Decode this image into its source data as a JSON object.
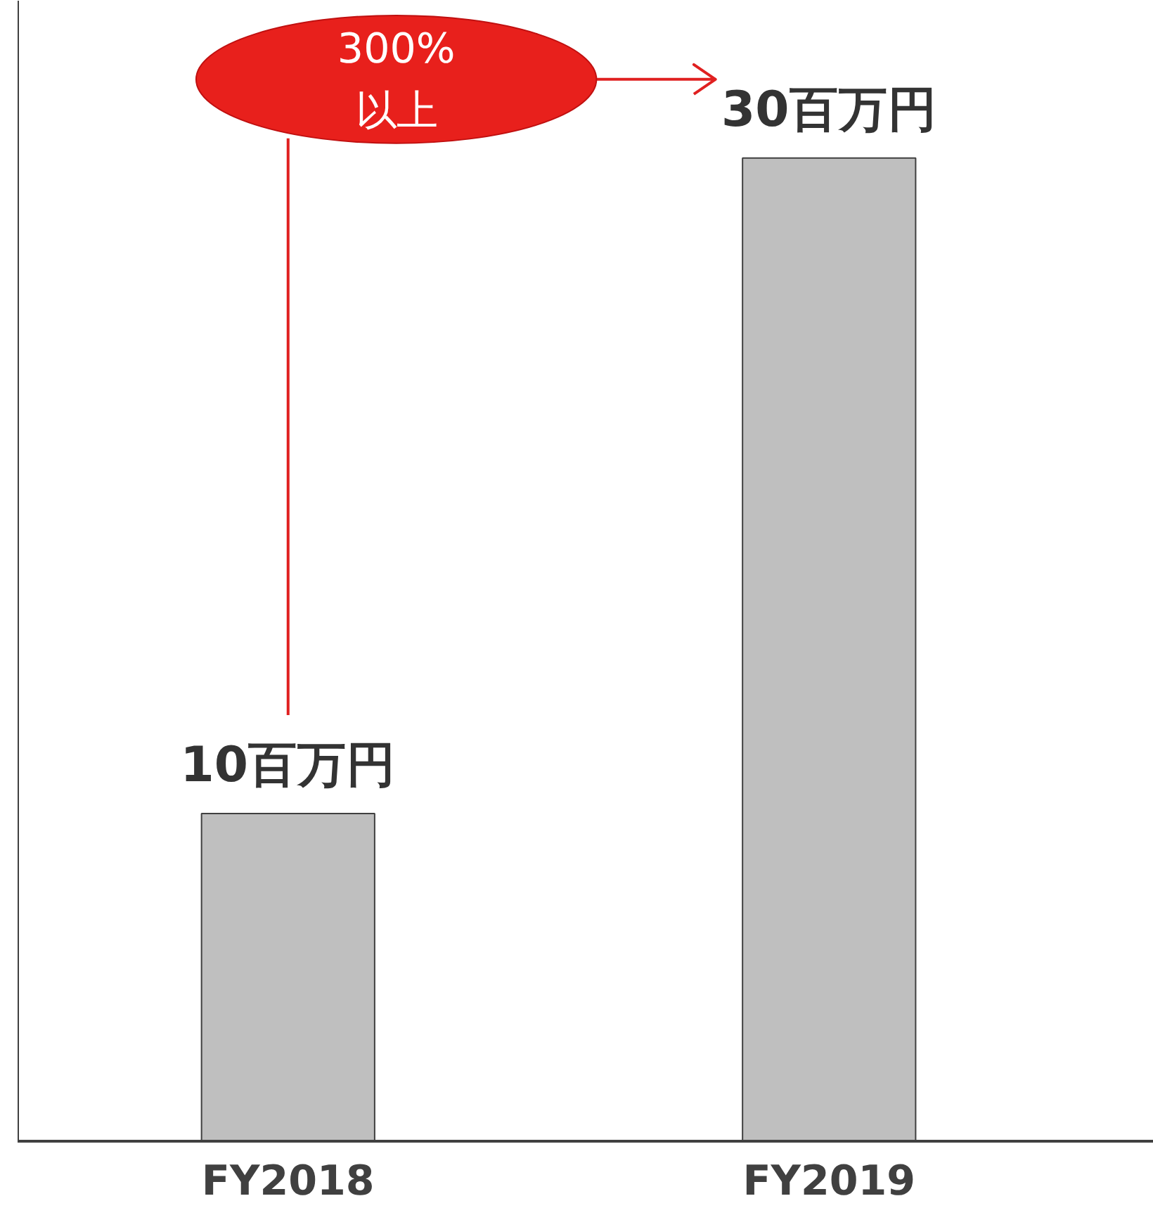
{
  "chart_data": {
    "type": "bar",
    "categories": [
      "FY2018",
      "FY2019"
    ],
    "values": [
      10,
      30
    ],
    "color": "#bfbfbf",
    "value_labels": [
      "10百万円",
      "30百万円"
    ],
    "annotations": [
      "300%\n以上"
    ],
    "grid": false
  }
}
